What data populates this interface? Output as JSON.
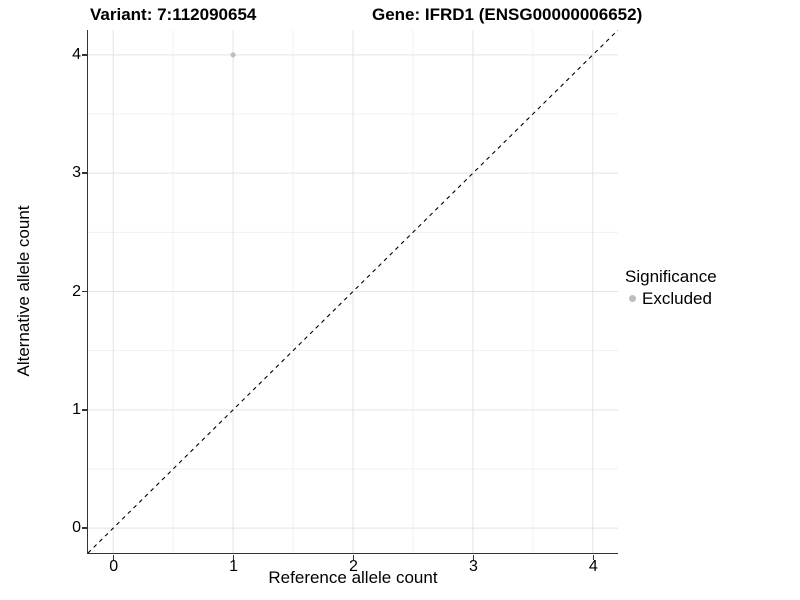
{
  "chart_data": {
    "type": "scatter",
    "title_variant": "Variant: 7:112090654",
    "title_gene": "Gene: IFRD1 (ENSG00000006652)",
    "xlabel": "Reference allele count",
    "ylabel": "Alternative allele count",
    "xlim": [
      -0.21,
      4.21
    ],
    "ylim": [
      -0.21,
      4.21
    ],
    "x_ticks": [
      0,
      1,
      2,
      3,
      4
    ],
    "y_ticks": [
      0,
      1,
      2,
      3,
      4
    ],
    "x_minor_ticks": [
      0.5,
      1.5,
      2.5,
      3.5
    ],
    "y_minor_ticks": [
      0.5,
      1.5,
      2.5,
      3.5
    ],
    "grid": true,
    "points": [
      {
        "x": 1,
        "y": 4,
        "significance": "Excluded"
      }
    ],
    "reference_line": {
      "type": "identity",
      "slope": 1,
      "intercept": 0,
      "style": "dashed",
      "color": "#000000"
    },
    "legend": {
      "position": "right",
      "title": "Significance",
      "entries": [
        {
          "label": "Excluded",
          "color": "#bdbdbd"
        }
      ]
    },
    "colors": {
      "point": "#bdbdbd",
      "grid_major": "#e3e3e3",
      "grid_minor": "#f0f0f0",
      "axis": "#333333",
      "text": "#000000"
    }
  }
}
